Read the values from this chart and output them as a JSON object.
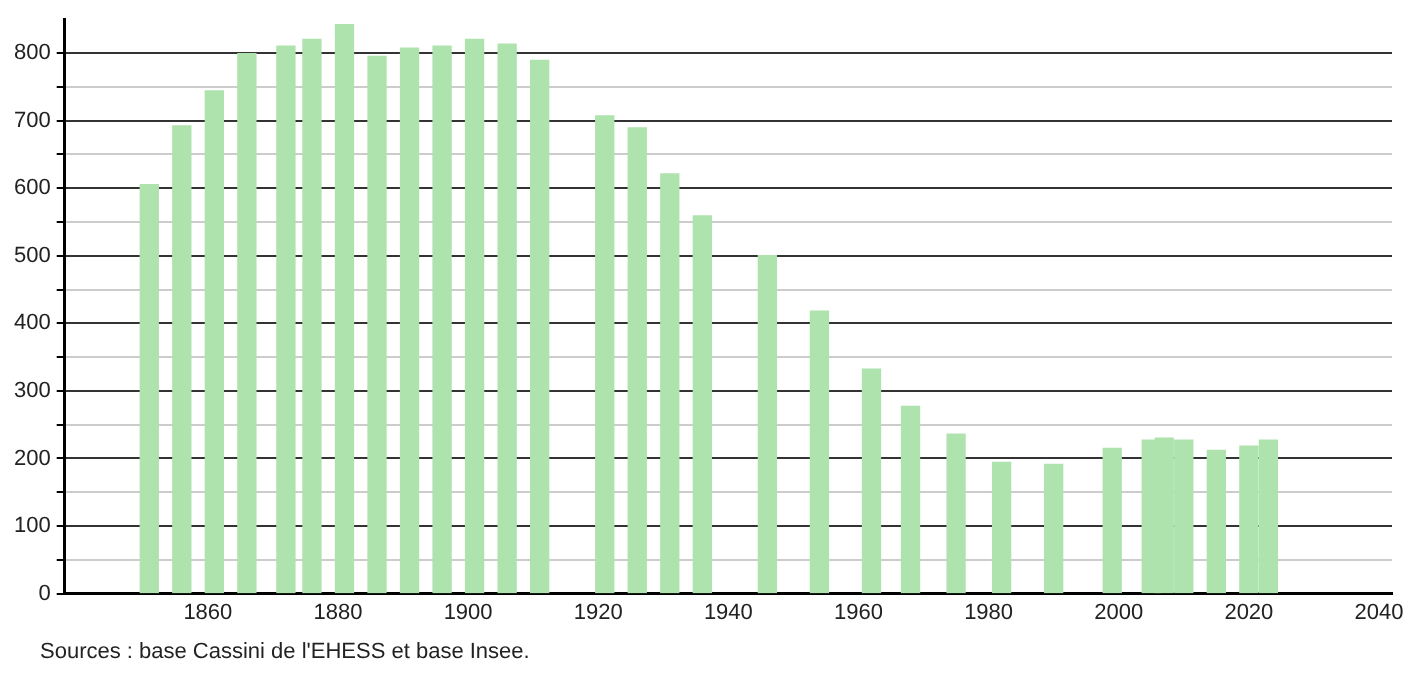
{
  "chart_data": {
    "type": "bar",
    "color": "#aee3ae",
    "x": [
      1851,
      1856,
      1861,
      1866,
      1872,
      1876,
      1881,
      1886,
      1891,
      1896,
      1901,
      1906,
      1911,
      1921,
      1926,
      1931,
      1936,
      1946,
      1954,
      1962,
      1968,
      1975,
      1982,
      1990,
      1999,
      2005,
      2007,
      2010,
      2015,
      2020,
      2023
    ],
    "values": [
      605,
      692,
      744,
      799,
      810,
      820,
      842,
      795,
      807,
      810,
      820,
      813,
      789,
      707,
      689,
      621,
      559,
      500,
      418,
      332,
      277,
      236,
      194,
      191,
      215,
      227,
      230,
      227,
      212,
      218,
      227
    ],
    "xlim": [
      1838,
      2042
    ],
    "xticks": [
      1860,
      1880,
      1900,
      1920,
      1940,
      1960,
      1980,
      2000,
      2020,
      2040
    ],
    "ylim": [
      0,
      850
    ],
    "yticks": [
      0,
      {
        "value": 50,
        "label": null
      },
      100,
      {
        "value": 150,
        "label": null
      },
      200,
      {
        "value": 250,
        "label": null
      },
      300,
      {
        "value": 350,
        "label": null
      },
      400,
      {
        "value": 450,
        "label": null
      },
      500,
      {
        "value": 550,
        "label": null
      },
      600,
      {
        "value": 650,
        "label": null
      },
      700,
      {
        "value": 750,
        "label": null
      },
      800
    ],
    "grid": "y",
    "legend": false,
    "annotations": [
      "Sources : base Cassini de l'EHESS et base Insee."
    ]
  }
}
